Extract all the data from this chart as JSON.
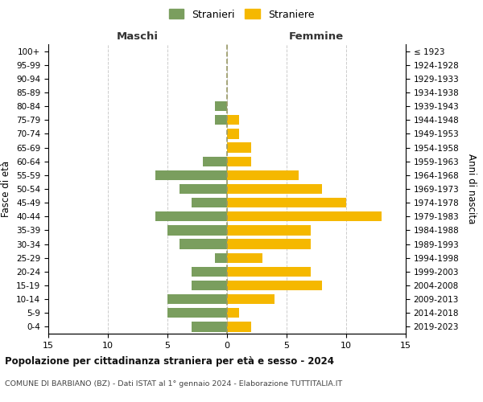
{
  "age_groups": [
    "100+",
    "95-99",
    "90-94",
    "85-89",
    "80-84",
    "75-79",
    "70-74",
    "65-69",
    "60-64",
    "55-59",
    "50-54",
    "45-49",
    "40-44",
    "35-39",
    "30-34",
    "25-29",
    "20-24",
    "15-19",
    "10-14",
    "5-9",
    "0-4"
  ],
  "birth_years": [
    "≤ 1923",
    "1924-1928",
    "1929-1933",
    "1934-1938",
    "1939-1943",
    "1944-1948",
    "1949-1953",
    "1954-1958",
    "1959-1963",
    "1964-1968",
    "1969-1973",
    "1974-1978",
    "1979-1983",
    "1984-1988",
    "1989-1993",
    "1994-1998",
    "1999-2003",
    "2004-2008",
    "2009-2013",
    "2014-2018",
    "2019-2023"
  ],
  "males": [
    0,
    0,
    0,
    0,
    1,
    1,
    0,
    0,
    2,
    6,
    4,
    3,
    6,
    5,
    4,
    1,
    3,
    3,
    5,
    5,
    3
  ],
  "females": [
    0,
    0,
    0,
    0,
    0,
    1,
    1,
    2,
    2,
    6,
    8,
    10,
    13,
    7,
    7,
    3,
    7,
    8,
    4,
    1,
    2
  ],
  "male_color": "#7a9e5e",
  "female_color": "#f5b800",
  "background_color": "#ffffff",
  "grid_color": "#cccccc",
  "title": "Popolazione per cittadinanza straniera per età e sesso - 2024",
  "subtitle": "COMUNE DI BARBIANO (BZ) - Dati ISTAT al 1° gennaio 2024 - Elaborazione TUTTITALIA.IT",
  "legend_male": "Stranieri",
  "legend_female": "Straniere",
  "xlabel_left": "Maschi",
  "xlabel_right": "Femmine",
  "ylabel_left": "Fasce di età",
  "ylabel_right": "Anni di nascita",
  "xlim": 15,
  "figsize": [
    6.0,
    5.0
  ],
  "dpi": 100
}
